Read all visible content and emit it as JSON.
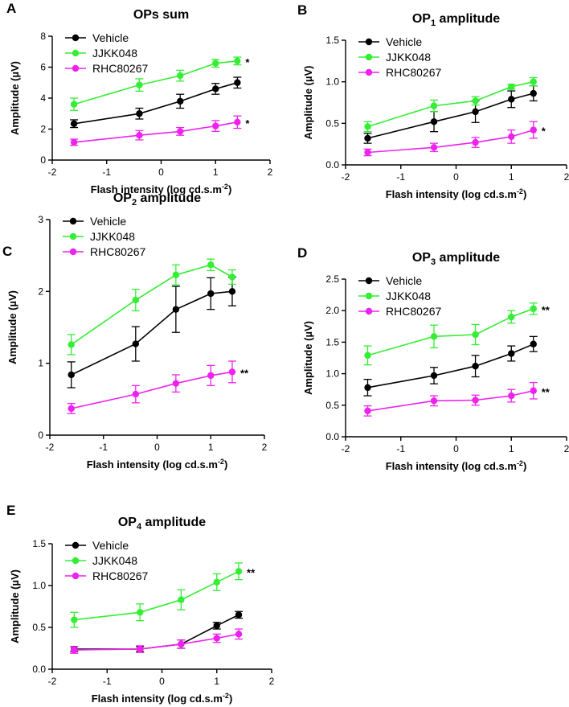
{
  "colors": {
    "Vehicle": "#000000",
    "JJKK048": "#33ee33",
    "RHC80267": "#ee22ee"
  },
  "chart_data": [
    {
      "panel_label": "A",
      "type": "line",
      "title": "OPs sum",
      "title_sub": "",
      "title_suffix": "",
      "xlabel": "Flash intensity (log cd.s.m",
      "xlabel_sup": "-2",
      "xlabel_end": ")",
      "ylabel": "Amplitude (µV)",
      "xlim": [
        -2,
        2
      ],
      "ylim": [
        0,
        8
      ],
      "xticks": [
        -2,
        -1,
        0,
        1,
        2
      ],
      "yticks": [
        0,
        2,
        4,
        6,
        8
      ],
      "ytick_labels": [
        "0",
        "2",
        "4",
        "6",
        "8"
      ],
      "x": [
        -1.6,
        -0.4,
        0.35,
        1.0,
        1.4
      ],
      "series": [
        {
          "name": "Vehicle",
          "values": [
            2.35,
            3.0,
            3.8,
            4.6,
            5.0
          ],
          "errors": [
            0.25,
            0.35,
            0.45,
            0.35,
            0.35
          ],
          "annotation": ""
        },
        {
          "name": "JJKK048",
          "values": [
            3.6,
            4.85,
            5.45,
            6.25,
            6.4
          ],
          "errors": [
            0.4,
            0.4,
            0.35,
            0.25,
            0.25
          ],
          "annotation": "*"
        },
        {
          "name": "RHC80267",
          "values": [
            1.15,
            1.6,
            1.85,
            2.2,
            2.45
          ],
          "errors": [
            0.2,
            0.3,
            0.25,
            0.35,
            0.4
          ],
          "annotation": "*"
        }
      ]
    },
    {
      "panel_label": "B",
      "type": "line",
      "title": "OP",
      "title_sub": "1",
      "title_suffix": " amplitude",
      "xlabel": "Flash intensity (log cd.s.m",
      "xlabel_sup": "-2",
      "xlabel_end": ")",
      "ylabel": "Amplitude (µV)",
      "xlim": [
        -2,
        2
      ],
      "ylim": [
        0,
        1.5
      ],
      "xticks": [
        -2,
        -1,
        0,
        1,
        2
      ],
      "yticks": [
        0,
        0.5,
        1.0,
        1.5
      ],
      "ytick_labels": [
        "0.0",
        "0.5",
        "1.0",
        "1.5"
      ],
      "x": [
        -1.6,
        -0.4,
        0.35,
        1.0,
        1.4
      ],
      "series": [
        {
          "name": "Vehicle",
          "values": [
            0.32,
            0.52,
            0.64,
            0.79,
            0.86
          ],
          "errors": [
            0.06,
            0.12,
            0.13,
            0.1,
            0.09
          ],
          "annotation": ""
        },
        {
          "name": "JJKK048",
          "values": [
            0.46,
            0.71,
            0.77,
            0.94,
            1.0
          ],
          "errors": [
            0.06,
            0.07,
            0.05,
            0.03,
            0.05
          ],
          "annotation": ""
        },
        {
          "name": "RHC80267",
          "values": [
            0.15,
            0.21,
            0.27,
            0.34,
            0.42
          ],
          "errors": [
            0.04,
            0.05,
            0.06,
            0.08,
            0.1
          ],
          "annotation": "*"
        }
      ]
    },
    {
      "panel_label": "C",
      "type": "line",
      "title": "OP",
      "title_sub": "2",
      "title_suffix": " amplitude",
      "xlabel": "Flash intensity (log cd.s.m",
      "xlabel_sup": "-2",
      "xlabel_end": ")",
      "ylabel": "Amplitude (µV)",
      "xlim": [
        -2,
        2
      ],
      "ylim": [
        0,
        3
      ],
      "xticks": [
        -2,
        -1,
        0,
        1,
        2
      ],
      "yticks": [
        0,
        1,
        2,
        3
      ],
      "ytick_labels": [
        "0",
        "1",
        "2",
        "3"
      ],
      "x": [
        -1.6,
        -0.4,
        0.35,
        1.0,
        1.4
      ],
      "series": [
        {
          "name": "Vehicle",
          "values": [
            0.84,
            1.27,
            1.75,
            1.97,
            2.0
          ],
          "errors": [
            0.18,
            0.24,
            0.32,
            0.22,
            0.2
          ],
          "annotation": ""
        },
        {
          "name": "JJKK048",
          "values": [
            1.26,
            1.88,
            2.23,
            2.37,
            2.2
          ],
          "errors": [
            0.14,
            0.15,
            0.14,
            0.08,
            0.1
          ],
          "annotation": ""
        },
        {
          "name": "RHC80267",
          "values": [
            0.37,
            0.57,
            0.72,
            0.83,
            0.88
          ],
          "errors": [
            0.07,
            0.12,
            0.12,
            0.14,
            0.15
          ],
          "annotation": "**"
        }
      ]
    },
    {
      "panel_label": "D",
      "type": "line",
      "title": "OP",
      "title_sub": "3",
      "title_suffix": " amplitude",
      "xlabel": "Flash intensity (log cd.s.m",
      "xlabel_sup": "-2",
      "xlabel_end": ")",
      "ylabel": "Amplitude (µV)",
      "xlim": [
        -2,
        2
      ],
      "ylim": [
        0,
        2.5
      ],
      "xticks": [
        -2,
        -1,
        0,
        1,
        2
      ],
      "yticks": [
        0,
        0.5,
        1.0,
        1.5,
        2.0,
        2.5
      ],
      "ytick_labels": [
        "0.0",
        "0.5",
        "1.0",
        "1.5",
        "2.0",
        "2.5"
      ],
      "x": [
        -1.6,
        -0.4,
        0.35,
        1.0,
        1.4
      ],
      "series": [
        {
          "name": "Vehicle",
          "values": [
            0.78,
            0.97,
            1.12,
            1.32,
            1.47
          ],
          "errors": [
            0.13,
            0.13,
            0.17,
            0.12,
            0.12
          ],
          "annotation": ""
        },
        {
          "name": "JJKK048",
          "values": [
            1.29,
            1.59,
            1.62,
            1.9,
            2.03
          ],
          "errors": [
            0.15,
            0.18,
            0.16,
            0.1,
            0.09
          ],
          "annotation": "**"
        },
        {
          "name": "RHC80267",
          "values": [
            0.41,
            0.57,
            0.58,
            0.65,
            0.73
          ],
          "errors": [
            0.08,
            0.08,
            0.08,
            0.1,
            0.13
          ],
          "annotation": "**"
        }
      ]
    },
    {
      "panel_label": "E",
      "type": "line",
      "title": "OP",
      "title_sub": "4",
      "title_suffix": " amplitude",
      "xlabel": "Flash intensity (log cd.s.m",
      "xlabel_sup": "-2",
      "xlabel_end": ")",
      "ylabel": "Amplitude (µV)",
      "xlim": [
        -2,
        2
      ],
      "ylim": [
        0,
        1.5
      ],
      "xticks": [
        -2,
        -1,
        0,
        1,
        2
      ],
      "yticks": [
        0,
        0.5,
        1.0,
        1.5
      ],
      "ytick_labels": [
        "0.0",
        "0.5",
        "1.0",
        "1.5"
      ],
      "x": [
        -1.6,
        -0.4,
        0.35,
        1.0,
        1.4
      ],
      "series": [
        {
          "name": "Vehicle",
          "values": [
            0.24,
            0.24,
            0.3,
            0.52,
            0.65
          ],
          "errors": [
            0.03,
            0.03,
            0.05,
            0.04,
            0.04
          ],
          "annotation": ""
        },
        {
          "name": "JJKK048",
          "values": [
            0.59,
            0.68,
            0.83,
            1.04,
            1.17
          ],
          "errors": [
            0.09,
            0.1,
            0.12,
            0.1,
            0.1
          ],
          "annotation": "**"
        },
        {
          "name": "RHC80267",
          "values": [
            0.23,
            0.24,
            0.3,
            0.37,
            0.42
          ],
          "errors": [
            0.04,
            0.04,
            0.05,
            0.05,
            0.06
          ],
          "annotation": ""
        }
      ]
    }
  ]
}
